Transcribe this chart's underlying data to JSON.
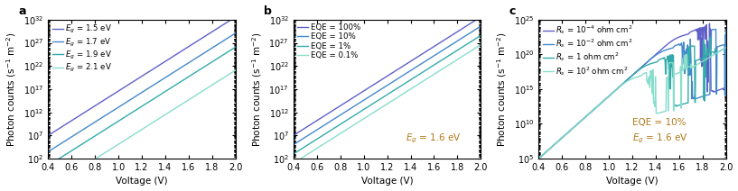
{
  "panel_a": {
    "label": "a",
    "xlabel": "Voltage (V)",
    "ylabel": "Photon counts (s$^{-1}$ m$^{-2}$)",
    "xlim": [
      0.4,
      2.0
    ],
    "ylim_exp": [
      2,
      32
    ],
    "xticks": [
      0.4,
      0.6,
      0.8,
      1.0,
      1.2,
      1.4,
      1.6,
      1.8,
      2.0
    ],
    "yticks_exp": [
      2,
      7,
      12,
      17,
      22,
      27,
      32
    ],
    "series": [
      {
        "intercept_exp": 7.0,
        "slope": 16.0,
        "color": "#6060c8",
        "label": "1.5 eV"
      },
      {
        "intercept_exp": 3.5,
        "slope": 16.0,
        "color": "#4488cc",
        "label": "1.7 eV"
      },
      {
        "intercept_exp": 0.5,
        "slope": 16.0,
        "color": "#33aaaa",
        "label": "1.9 eV"
      },
      {
        "intercept_exp": -4.5,
        "slope": 16.0,
        "color": "#88ddcc",
        "label": "2.1 eV"
      }
    ]
  },
  "panel_b": {
    "label": "b",
    "xlabel": "Voltage (V)",
    "ylabel": "Photon counts (s$^{-1}$ m$^{-2}$)",
    "xlim": [
      0.4,
      2.0
    ],
    "ylim_exp": [
      2,
      32
    ],
    "xticks": [
      0.4,
      0.6,
      0.8,
      1.0,
      1.2,
      1.4,
      1.6,
      1.8,
      2.0
    ],
    "yticks_exp": [
      2,
      7,
      12,
      17,
      22,
      27,
      32
    ],
    "annotation": "$E_g$ = 1.6 eV",
    "series": [
      {
        "intercept_exp": 7.0,
        "slope": 16.0,
        "color": "#6060c8",
        "label": "100%"
      },
      {
        "intercept_exp": 5.0,
        "slope": 16.0,
        "color": "#4488cc",
        "label": "10%"
      },
      {
        "intercept_exp": 3.0,
        "slope": 16.0,
        "color": "#33aaaa",
        "label": "1%"
      },
      {
        "intercept_exp": 1.0,
        "slope": 16.0,
        "color": "#88ddcc",
        "label": "0.1%"
      }
    ]
  },
  "panel_c": {
    "label": "c",
    "xlabel": "Voltage (V)",
    "ylabel": "Photon counts (s$^{-1}$ m$^{-2}$)",
    "xlim": [
      0.4,
      2.0
    ],
    "ylim_exp": [
      5,
      25
    ],
    "xticks": [
      0.4,
      0.6,
      0.8,
      1.0,
      1.2,
      1.4,
      1.6,
      1.8,
      2.0
    ],
    "yticks_exp": [
      5,
      10,
      15,
      20,
      25
    ],
    "annotation": "EQE = 10%\n$E_g$ = 1.6 eV",
    "series": [
      {
        "color": "#6060c8",
        "label": "$R_s$ = 10$^{-4}$ ohm cm$^2$",
        "Rs_val": 0.0001
      },
      {
        "color": "#4488cc",
        "label": "$R_s$ = 10$^{-2}$ ohm cm$^2$",
        "Rs_val": 0.01
      },
      {
        "color": "#33aaaa",
        "label": "$R_s$ = 1 ohm cm$^2$",
        "Rs_val": 1.0
      },
      {
        "color": "#88ddcc",
        "label": "$R_s$ = 10$^{2}$ ohm cm$^2$",
        "Rs_val": 100.0
      }
    ],
    "base_intercept": 5.0,
    "slope": 15.0,
    "scale_factor": 1e-20
  },
  "figure_bg": "#ffffff",
  "axes_bg": "#ffffff",
  "tick_fontsize": 7,
  "label_fontsize": 7.5,
  "legend_fontsize": 6.2,
  "panel_label_fontsize": 9,
  "annotation_color": "#b07818",
  "linewidth": 1.0
}
